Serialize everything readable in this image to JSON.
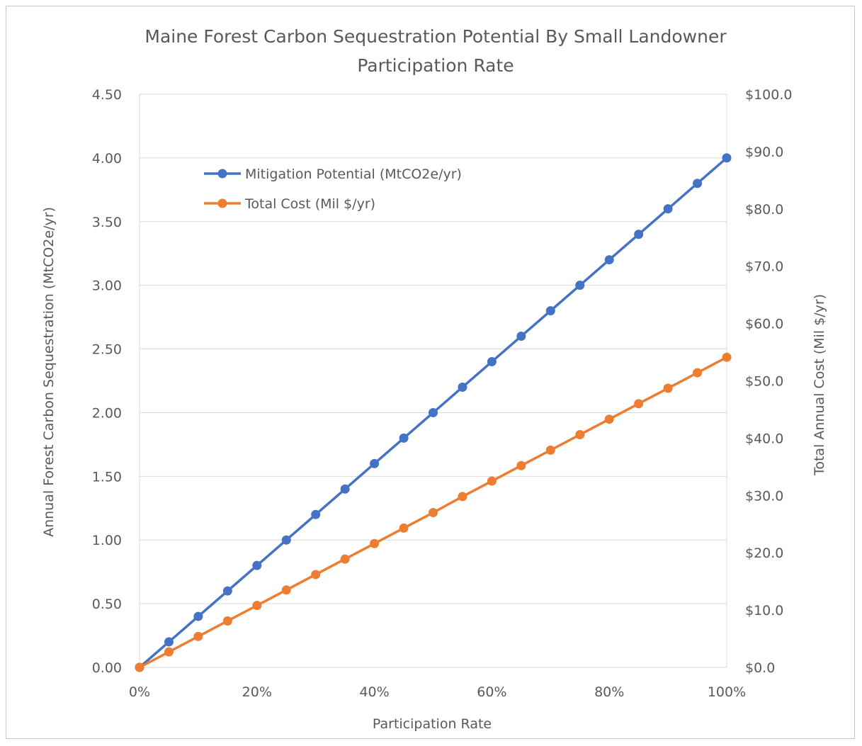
{
  "chart_data": {
    "type": "line",
    "title_line1": "Maine Forest Carbon Sequestration Potential By Small Landowner",
    "title_line2": "Participation Rate",
    "xlabel": "Participation Rate",
    "ylabel_left": "Annual Forest Carbon Sequestration (MtCO2e/yr)",
    "ylabel_right": "Total Annual Cost (Mil $/yr)",
    "x": [
      0,
      5,
      10,
      15,
      20,
      25,
      30,
      35,
      40,
      45,
      50,
      55,
      60,
      65,
      70,
      75,
      80,
      85,
      90,
      95,
      100
    ],
    "x_ticks": [
      0,
      20,
      40,
      60,
      80,
      100
    ],
    "x_tick_labels": [
      "0%",
      "20%",
      "40%",
      "60%",
      "80%",
      "100%"
    ],
    "xlim": [
      0,
      100
    ],
    "y_left_ticks": [
      0,
      0.5,
      1,
      1.5,
      2,
      2.5,
      3,
      3.5,
      4,
      4.5
    ],
    "y_left_tick_labels": [
      "0.00",
      "0.50",
      "1.00",
      "1.50",
      "2.00",
      "2.50",
      "3.00",
      "3.50",
      "4.00",
      "4.50"
    ],
    "ylim_left": [
      0,
      4.5
    ],
    "y_right_ticks": [
      0,
      10,
      20,
      30,
      40,
      50,
      60,
      70,
      80,
      90,
      100
    ],
    "y_right_tick_labels": [
      "$0.0",
      "$10.0",
      "$20.0",
      "$30.0",
      "$40.0",
      "$50.0",
      "$60.0",
      "$70.0",
      "$80.0",
      "$90.0",
      "$100.0"
    ],
    "ylim_right": [
      0,
      100
    ],
    "grid": true,
    "legend_position": "top-left",
    "series": [
      {
        "name": "Mitigation Potential (MtCO2e/yr)",
        "axis": "left",
        "color": "#4472c4",
        "values": [
          0,
          0.2,
          0.4,
          0.6,
          0.8,
          1.0,
          1.2,
          1.4,
          1.6,
          1.8,
          2.0,
          2.2,
          2.4,
          2.6,
          2.8,
          3.0,
          3.2,
          3.4,
          3.6,
          3.8,
          4.0
        ]
      },
      {
        "name": "Total Cost (Mil $/yr)",
        "axis": "right",
        "color": "#ed7d31",
        "values": [
          0,
          2.7,
          5.4,
          8.1,
          10.8,
          13.5,
          16.2,
          18.9,
          21.6,
          24.3,
          27.0,
          29.8,
          32.5,
          35.2,
          37.9,
          40.6,
          43.3,
          46.0,
          48.7,
          51.4,
          54.1
        ]
      }
    ]
  }
}
